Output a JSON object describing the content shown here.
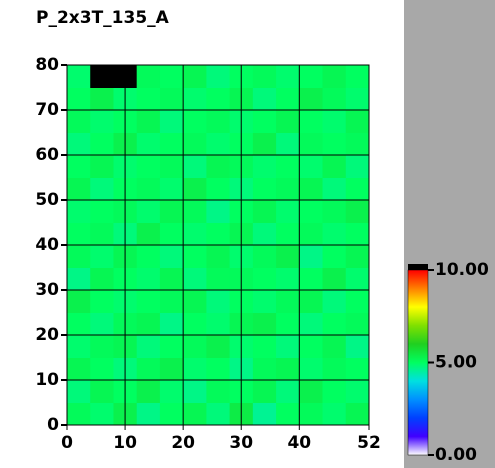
{
  "chart_data": {
    "type": "heatmap",
    "title": "P_2x3T_135_A",
    "xbins": [
      0,
      4,
      8,
      12,
      16,
      20,
      24,
      28,
      32,
      36,
      40,
      44,
      48,
      52
    ],
    "ybins": [
      0,
      5,
      10,
      15,
      20,
      25,
      30,
      35,
      40,
      45,
      50,
      55,
      60,
      65,
      70,
      75,
      80
    ],
    "z": [
      [
        5.1,
        4.9,
        5.3,
        4.7,
        5.0,
        5.2,
        4.8,
        5.4,
        4.6,
        5.0,
        5.1,
        4.9,
        5.2
      ],
      [
        4.8,
        5.2,
        5.0,
        5.3,
        4.9,
        4.7,
        5.1,
        5.0,
        5.2,
        4.8,
        5.3,
        5.0,
        4.9
      ],
      [
        5.2,
        5.0,
        4.8,
        5.1,
        5.3,
        4.9,
        5.0,
        4.7,
        5.1,
        5.2,
        4.9,
        5.1,
        5.0
      ],
      [
        4.9,
        5.1,
        5.2,
        4.8,
        5.0,
        5.1,
        5.3,
        4.9,
        5.0,
        4.8,
        5.0,
        5.2,
        4.7
      ],
      [
        5.0,
        4.8,
        5.1,
        5.2,
        4.7,
        5.0,
        4.9,
        5.2,
        5.3,
        5.0,
        4.8,
        5.0,
        5.1
      ],
      [
        5.3,
        5.0,
        4.9,
        5.0,
        5.1,
        5.2,
        4.8,
        5.0,
        4.9,
        5.1,
        5.2,
        4.8,
        5.0
      ],
      [
        4.7,
        5.2,
        5.0,
        4.9,
        5.2,
        4.8,
        5.1,
        5.1,
        5.0,
        4.9,
        5.0,
        5.3,
        4.9
      ],
      [
        5.1,
        4.9,
        5.2,
        5.0,
        4.8,
        5.0,
        5.2,
        4.9,
        5.1,
        5.3,
        4.7,
        5.0,
        5.2
      ],
      [
        5.0,
        5.1,
        4.8,
        5.3,
        5.0,
        4.9,
        5.0,
        5.2,
        4.8,
        5.0,
        5.1,
        4.9,
        5.0
      ],
      [
        4.9,
        5.0,
        5.1,
        4.9,
        5.2,
        5.1,
        4.7,
        5.0,
        5.2,
        4.9,
        5.0,
        5.1,
        5.3
      ],
      [
        5.2,
        4.8,
        5.0,
        5.1,
        4.9,
        5.3,
        5.0,
        4.8,
        5.0,
        5.1,
        5.2,
        4.8,
        5.0
      ],
      [
        5.0,
        5.2,
        4.9,
        5.0,
        5.1,
        4.8,
        5.2,
        5.1,
        4.9,
        5.0,
        4.9,
        5.2,
        4.8
      ],
      [
        4.8,
        5.0,
        5.3,
        4.9,
        5.0,
        5.1,
        4.9,
        5.0,
        5.3,
        4.8,
        5.1,
        5.0,
        5.1
      ],
      [
        5.1,
        4.9,
        5.0,
        5.2,
        4.8,
        5.0,
        5.1,
        4.9,
        5.0,
        5.2,
        5.0,
        4.9,
        5.2
      ],
      [
        5.0,
        5.3,
        4.9,
        5.0,
        5.1,
        4.9,
        5.0,
        5.2,
        4.8,
        5.0,
        5.3,
        5.1,
        4.9
      ],
      [
        4.9,
        11,
        11,
        5.1,
        5.0,
        5.2,
        4.8,
        5.0,
        5.1,
        4.9,
        5.0,
        5.2,
        5.0
      ]
    ],
    "xlim": [
      0,
      52
    ],
    "xticks": [
      0,
      10,
      20,
      30,
      40,
      52
    ],
    "ylim": [
      0,
      80
    ],
    "yticks": [
      0,
      10,
      20,
      30,
      40,
      50,
      60,
      70,
      80
    ],
    "zlim": [
      0,
      10
    ],
    "zticks": [
      {
        "value": 0,
        "label": "0.00"
      },
      {
        "value": 5,
        "label": "5.00"
      },
      {
        "value": 10,
        "label": "10.00"
      }
    ],
    "colors": [
      "#ffffff",
      "#4000ff",
      "#0040ff",
      "#0090ff",
      "#00e0e0",
      "#00ff60",
      "#20d020",
      "#80e000",
      "#ffff00",
      "#ff8000",
      "#ff0000"
    ],
    "over_color": "#000000",
    "grid": true
  }
}
